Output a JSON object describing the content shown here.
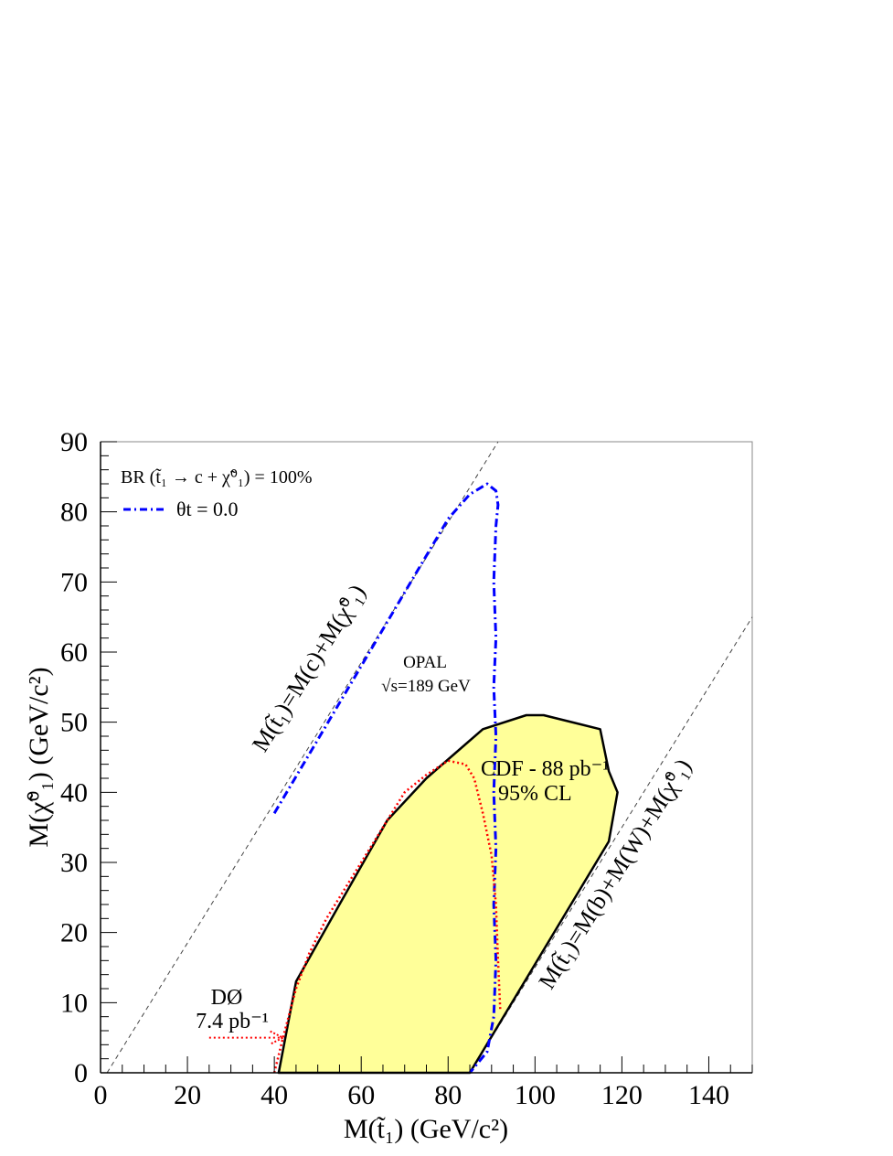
{
  "chart_data": {
    "type": "area",
    "title": "",
    "xlabel": "M(t̃₁) (GeV/c²)",
    "ylabel": "M(χ̃⁰₁) (GeV/c²)",
    "xlim": [
      0,
      150
    ],
    "ylim": [
      0,
      90
    ],
    "xticks": [
      "0",
      "20",
      "40",
      "60",
      "80",
      "100",
      "120",
      "140"
    ],
    "yticks": [
      "0",
      "10",
      "20",
      "30",
      "40",
      "50",
      "60",
      "70",
      "80",
      "90"
    ],
    "grid": false,
    "legend": {
      "position": "top-left",
      "header": "BR (t̃₁ → c + χ̃⁰₁) = 100%",
      "entries": [
        {
          "label": "θt = 0.0",
          "color": "#0000ff",
          "style": "dash-dot"
        }
      ]
    },
    "series": [
      {
        "name": "CDF - 88 pb⁻¹ 95% CL",
        "kind": "filled-region",
        "fill": "#ffff99",
        "stroke": "#000000",
        "points": [
          [
            41,
            0
          ],
          [
            45,
            13
          ],
          [
            55,
            24
          ],
          [
            66,
            36
          ],
          [
            75,
            42
          ],
          [
            88,
            49
          ],
          [
            98,
            51
          ],
          [
            102,
            51
          ],
          [
            115,
            49
          ],
          [
            117,
            43
          ],
          [
            119,
            40
          ],
          [
            117,
            33
          ],
          [
            85,
            0
          ]
        ]
      },
      {
        "name": "OPAL √s=189 GeV",
        "kind": "line",
        "style": "dash-dot",
        "color": "#0000ff",
        "points": [
          [
            40,
            37
          ],
          [
            50,
            47.5
          ],
          [
            60,
            58
          ],
          [
            70,
            68.5
          ],
          [
            80,
            79
          ],
          [
            85,
            82.5
          ],
          [
            89,
            84
          ],
          [
            91,
            83
          ],
          [
            91.5,
            81
          ],
          [
            91,
            78
          ],
          [
            90.5,
            70
          ],
          [
            91,
            62
          ],
          [
            90.5,
            55
          ],
          [
            91,
            48
          ],
          [
            90.5,
            40
          ],
          [
            91,
            32
          ],
          [
            90.5,
            24
          ],
          [
            91,
            16
          ],
          [
            90.5,
            8
          ],
          [
            89,
            3
          ],
          [
            85,
            0
          ]
        ]
      },
      {
        "name": "D0 7.4 pb⁻¹",
        "kind": "line",
        "style": "dotted",
        "color": "#ff0000",
        "points": [
          [
            40,
            0
          ],
          [
            42,
            5
          ],
          [
            45,
            12
          ],
          [
            48,
            17
          ],
          [
            52,
            22
          ],
          [
            57,
            27
          ],
          [
            64,
            34
          ],
          [
            70,
            40
          ],
          [
            75,
            42.5
          ],
          [
            80,
            44.5
          ],
          [
            84,
            44
          ],
          [
            86,
            42
          ],
          [
            88,
            37
          ],
          [
            90,
            31
          ],
          [
            91,
            24
          ],
          [
            91.5,
            16
          ],
          [
            92,
            9
          ]
        ]
      }
    ],
    "reference_lines": [
      {
        "label": "M(t̃₁)=M(c)+M(χ̃⁰₁)",
        "points": [
          [
            1.5,
            0
          ],
          [
            91.5,
            90
          ]
        ]
      },
      {
        "label": "M(t̃₁)=M(b)+M(W)+M(χ̃⁰₁)",
        "points": [
          [
            85,
            0
          ],
          [
            150,
            65
          ]
        ]
      }
    ],
    "annotations": {
      "opal_label": "OPAL",
      "opal_energy": "√s=189 GeV",
      "cdf_label": "CDF - 88 pb⁻¹",
      "cdf_cl": "95% CL",
      "d0_label": "DØ",
      "d0_lumi": "7.4 pb⁻¹",
      "d0_arrow": [
        [
          25,
          5
        ],
        [
          42,
          5
        ]
      ]
    }
  }
}
